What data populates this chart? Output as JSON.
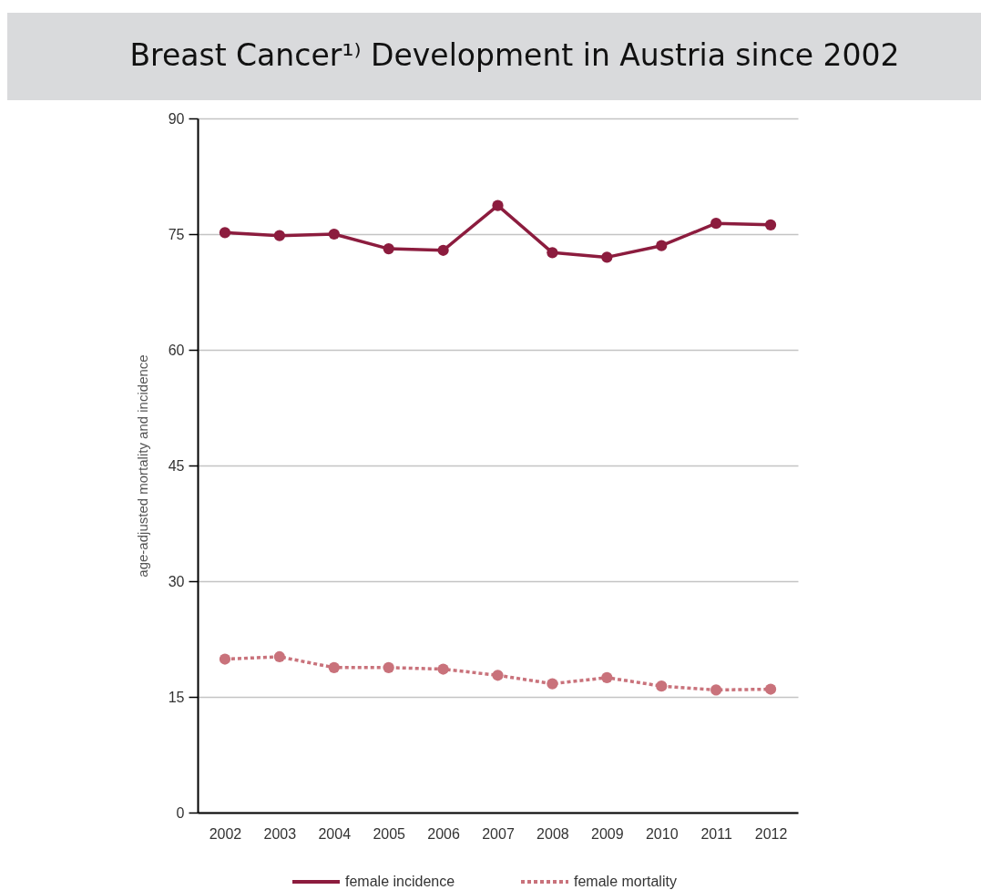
{
  "chart_data": {
    "type": "line",
    "title": "Breast Cancer¹⁾ Development in Austria since 2002",
    "ylabel": "age-adjusted mortality and incidence",
    "categories": [
      "2002",
      "2003",
      "2004",
      "2005",
      "2006",
      "2007",
      "2008",
      "2009",
      "2010",
      "2011",
      "2012"
    ],
    "series": [
      {
        "name": "female incidence",
        "color": "#8c1c3e",
        "line_style": "solid",
        "values": [
          75.2,
          74.8,
          75.0,
          73.1,
          72.9,
          78.7,
          72.6,
          72.0,
          73.5,
          76.4,
          76.2
        ]
      },
      {
        "name": "female mortality",
        "color": "#c9727b",
        "line_style": "dotted",
        "values": [
          19.9,
          20.2,
          18.8,
          18.8,
          18.6,
          17.8,
          16.7,
          17.5,
          16.4,
          15.9,
          16.0
        ]
      }
    ],
    "ylim": [
      0,
      90
    ],
    "yticks": [
      0,
      15,
      30,
      45,
      60,
      75,
      90
    ],
    "grid": "y",
    "legend": "bottom",
    "marker": "circle"
  }
}
